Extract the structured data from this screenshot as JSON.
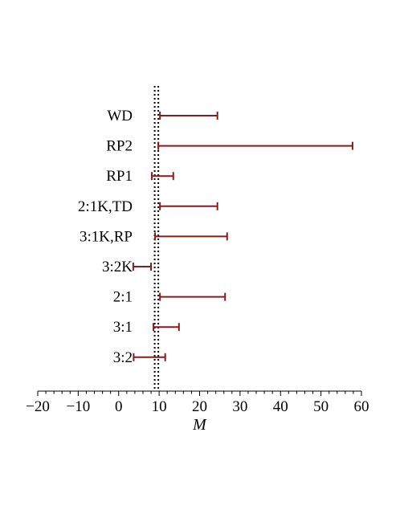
{
  "chart_data": {
    "type": "interval",
    "xlabel": "M",
    "xlim": [
      -20,
      60
    ],
    "x_ticks": [
      -20,
      -10,
      0,
      10,
      20,
      30,
      40,
      50,
      60
    ],
    "x_tick_labels": [
      "−20",
      "−10",
      "0",
      "10",
      "20",
      "30",
      "40",
      "50",
      "60"
    ],
    "reference_lines": [
      8.9,
      9.8
    ],
    "series_color": "#8b1a1a",
    "reference_color": "#000000",
    "intervals": [
      {
        "label": "WD",
        "low": 10.2,
        "high": 24.4
      },
      {
        "label": "RP2",
        "low": 9.8,
        "high": 57.8
      },
      {
        "label": "RP1",
        "low": 8.2,
        "high": 13.5
      },
      {
        "label": "2:1K,TD",
        "low": 10.2,
        "high": 24.4
      },
      {
        "label": "3:1K,RP",
        "low": 9.0,
        "high": 26.8
      },
      {
        "label": "3:2K",
        "low": 3.6,
        "high": 8.0
      },
      {
        "label": "2:1",
        "low": 10.2,
        "high": 26.3
      },
      {
        "label": "3:1",
        "low": 8.6,
        "high": 14.9
      },
      {
        "label": "3:2",
        "low": 3.7,
        "high": 11.5
      }
    ]
  }
}
